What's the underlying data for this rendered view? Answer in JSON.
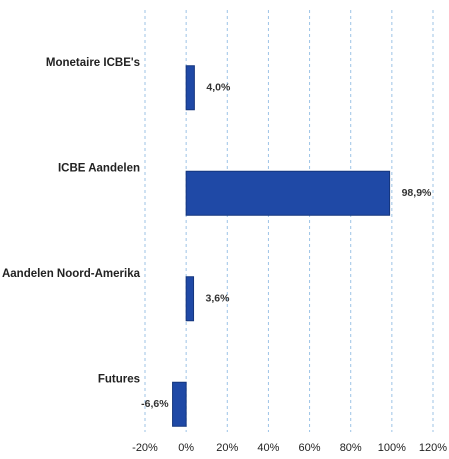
{
  "chart_data": {
    "type": "bar",
    "orientation": "horizontal",
    "categories": [
      "Monetaire ICBE's",
      "ICBE Aandelen",
      "Aandelen Noord-Amerika",
      "Futures"
    ],
    "values": [
      4.0,
      98.9,
      3.6,
      -6.6
    ],
    "value_labels": [
      "4,0%",
      "98,9%",
      "3,6%",
      "-6,6%"
    ],
    "color": "#1f49a6",
    "xlim": [
      -20,
      120
    ],
    "xticks": [
      {
        "value": -20,
        "label": "-20%"
      },
      {
        "value": 0,
        "label": "0%"
      },
      {
        "value": 20,
        "label": "20%"
      },
      {
        "value": 40,
        "label": "40%"
      },
      {
        "value": 60,
        "label": "60%"
      },
      {
        "value": 80,
        "label": "80%"
      },
      {
        "value": 100,
        "label": "100%"
      },
      {
        "value": 120,
        "label": "120%"
      }
    ],
    "grid": true
  }
}
